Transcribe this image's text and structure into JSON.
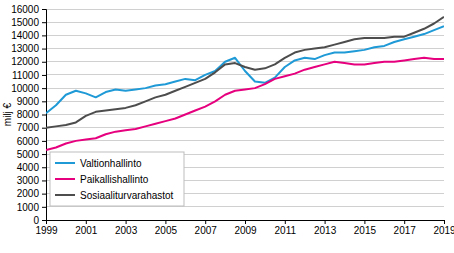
{
  "chart_data": {
    "type": "line",
    "y_label": "milj €",
    "x": [
      1999,
      1999.5,
      2000,
      2000.5,
      2001,
      2001.5,
      2002,
      2002.5,
      2003,
      2003.5,
      2004,
      2004.5,
      2005,
      2005.5,
      2006,
      2006.5,
      2007,
      2007.5,
      2008,
      2008.5,
      2009,
      2009.5,
      2010,
      2010.5,
      2011,
      2011.5,
      2012,
      2012.5,
      2013,
      2013.5,
      2014,
      2014.5,
      2015,
      2015.5,
      2016,
      2016.5,
      2017,
      2017.5,
      2018,
      2018.5,
      2019
    ],
    "series": [
      {
        "name": "Valtionhallinto",
        "color": "#1f9ad6",
        "values": [
          8100,
          8700,
          9500,
          9800,
          9600,
          9300,
          9700,
          9900,
          9800,
          9900,
          10000,
          10200,
          10300,
          10500,
          10700,
          10600,
          11000,
          11300,
          12000,
          12300,
          11300,
          10500,
          10400,
          10800,
          11600,
          12100,
          12300,
          12200,
          12500,
          12700,
          12700,
          12800,
          12900,
          13100,
          13200,
          13500,
          13700,
          13900,
          14100,
          14400,
          14700
        ]
      },
      {
        "name": "Paikallishallinto",
        "color": "#e6007e",
        "values": [
          5300,
          5500,
          5800,
          6000,
          6100,
          6200,
          6500,
          6700,
          6800,
          6900,
          7100,
          7300,
          7500,
          7700,
          8000,
          8300,
          8600,
          9000,
          9500,
          9800,
          9900,
          10000,
          10300,
          10700,
          10900,
          11100,
          11400,
          11600,
          11800,
          12000,
          11900,
          11800,
          11800,
          11900,
          12000,
          12000,
          12100,
          12200,
          12300,
          12200,
          12200
        ]
      },
      {
        "name": "Sosiaaliturvarahastot",
        "color": "#4d4d4d",
        "values": [
          7000,
          7100,
          7200,
          7400,
          7900,
          8200,
          8300,
          8400,
          8500,
          8700,
          9000,
          9300,
          9500,
          9800,
          10100,
          10400,
          10700,
          11200,
          11800,
          11900,
          11600,
          11400,
          11500,
          11800,
          12300,
          12700,
          12900,
          13000,
          13100,
          13300,
          13500,
          13700,
          13800,
          13800,
          13800,
          13900,
          13900,
          14200,
          14500,
          14900,
          15400
        ]
      }
    ],
    "xlim": [
      1999,
      2019
    ],
    "xticks": [
      1999,
      2001,
      2003,
      2005,
      2007,
      2009,
      2011,
      2013,
      2015,
      2017,
      2019
    ],
    "ylim": [
      0,
      16000
    ],
    "yticks": [
      0,
      1000,
      2000,
      3000,
      4000,
      5000,
      6000,
      7000,
      8000,
      9000,
      10000,
      11000,
      12000,
      13000,
      14000,
      15000,
      16000
    ],
    "grid": true,
    "legend": "lower left"
  }
}
